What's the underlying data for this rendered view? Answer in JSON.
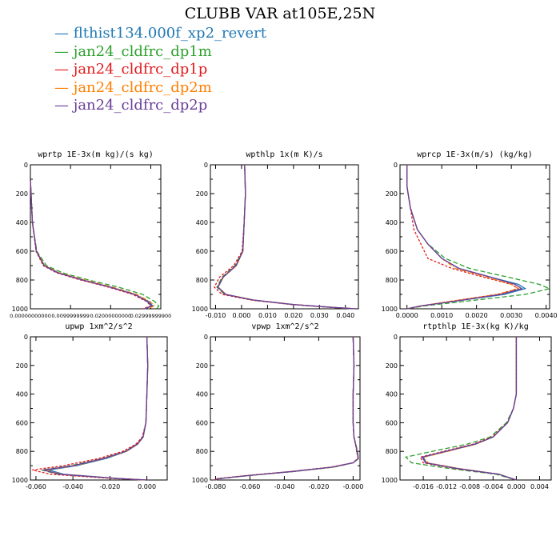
{
  "figure": {
    "title": "CLUBB VAR at105E,25N",
    "legend": [
      {
        "label": "flthist134.000f_xp2_revert",
        "color": "#1f78b4"
      },
      {
        "label": "jan24_cldfrc_dp1m",
        "color": "#2ca02c"
      },
      {
        "label": "jan24_cldfrc_dp1p",
        "color": "#e31a1c"
      },
      {
        "label": "jan24_cldfrc_dp2m",
        "color": "#ff7f00"
      },
      {
        "label": "jan24_cldfrc_dp2p",
        "color": "#6a3d9a"
      }
    ]
  },
  "chart_data": [
    {
      "type": "line",
      "title": "wprtp  1E-3x(m kg)/(s kg)",
      "xlim": [
        0,
        0.0325
      ],
      "ylim": [
        1000,
        0
      ],
      "xticks": [
        0.0,
        0.01,
        0.02,
        0.03
      ],
      "xtick_labels": [
        "0.00000000000",
        "0.0099999999",
        "0.02000000000",
        "0.02999999900"
      ],
      "yticks": [
        0,
        200,
        400,
        600,
        800,
        1000
      ],
      "ytick_labels": [
        "0",
        "200",
        "400",
        "600",
        "800",
        "1000"
      ],
      "pressure": [
        100,
        400,
        600,
        700,
        750,
        800,
        850,
        900,
        950,
        980,
        1000
      ],
      "series": [
        {
          "values": [
            0.0,
            0.0005,
            0.0015,
            0.0035,
            0.007,
            0.013,
            0.02,
            0.026,
            0.0295,
            0.0305,
            0.0285
          ]
        },
        {
          "values": [
            0.0,
            0.0005,
            0.0016,
            0.004,
            0.008,
            0.0145,
            0.022,
            0.028,
            0.031,
            0.032,
            0.0315
          ]
        },
        {
          "values": [
            0.0,
            0.0005,
            0.0014,
            0.0032,
            0.0065,
            0.0125,
            0.0195,
            0.0255,
            0.029,
            0.03,
            0.028
          ]
        },
        {
          "values": [
            0.0,
            0.0005,
            0.0015,
            0.0036,
            0.0072,
            0.0135,
            0.0205,
            0.0265,
            0.0298,
            0.031,
            0.029
          ]
        },
        {
          "values": [
            0.0,
            0.0005,
            0.0015,
            0.0034,
            0.0068,
            0.013,
            0.02,
            0.026,
            0.0292,
            0.0302,
            0.0285
          ]
        }
      ]
    },
    {
      "type": "line",
      "title": "wpthlp  1x(m K)/s",
      "xlim": [
        -0.012,
        0.045
      ],
      "ylim": [
        1000,
        0
      ],
      "xticks": [
        -0.01,
        0.0,
        0.01,
        0.02,
        0.03,
        0.04
      ],
      "xtick_labels": [
        "-0.010",
        "0.000",
        "0.010",
        "0.020",
        "0.030",
        "0.040"
      ],
      "yticks": [
        0,
        200,
        400,
        600,
        800,
        1000
      ],
      "ytick_labels": [
        "0",
        "200",
        "400",
        "600",
        "800",
        "1000"
      ],
      "pressure": [
        0,
        200,
        400,
        600,
        700,
        780,
        850,
        900,
        940,
        970,
        990,
        1000
      ],
      "series": [
        {
          "values": [
            0.0012,
            0.0015,
            0.001,
            0.0005,
            -0.002,
            -0.007,
            -0.009,
            -0.006,
            0.005,
            0.02,
            0.035,
            0.044
          ]
        },
        {
          "values": [
            0.0012,
            0.0015,
            0.001,
            0.0004,
            -0.0025,
            -0.0075,
            -0.0095,
            -0.0065,
            0.0045,
            0.0195,
            0.0345,
            0.044
          ]
        },
        {
          "values": [
            0.0012,
            0.0015,
            0.001,
            0.0002,
            -0.003,
            -0.0085,
            -0.0105,
            -0.0075,
            0.004,
            0.019,
            0.034,
            0.044
          ]
        },
        {
          "values": [
            0.0012,
            0.0015,
            0.001,
            0.0005,
            -0.002,
            -0.007,
            -0.009,
            -0.006,
            0.005,
            0.02,
            0.035,
            0.044
          ]
        },
        {
          "values": [
            0.0012,
            0.0015,
            0.001,
            0.0005,
            -0.0022,
            -0.0072,
            -0.0092,
            -0.0062,
            0.0048,
            0.0198,
            0.0348,
            0.044
          ]
        }
      ]
    },
    {
      "type": "line",
      "title": "wprcp  1E-3x(m/s) (kg/kg)",
      "xlim": [
        -0.0002,
        0.0041
      ],
      "ylim": [
        1000,
        0
      ],
      "xticks": [
        0.0,
        0.001,
        0.002,
        0.003,
        0.004
      ],
      "xtick_labels": [
        "0.0000",
        "0.0010",
        "0.0020",
        "0.0030",
        "0.0040"
      ],
      "yticks": [
        0,
        200,
        400,
        600,
        800,
        1000
      ],
      "ytick_labels": [
        "0",
        "200",
        "400",
        "600",
        "800",
        "1000"
      ],
      "pressure": [
        0,
        150,
        300,
        450,
        550,
        650,
        720,
        780,
        830,
        860,
        900,
        950,
        980,
        1000
      ],
      "series": [
        {
          "values": [
            0.0,
            0.0,
            0.0001,
            0.0003,
            0.0006,
            0.001,
            0.0015,
            0.0024,
            0.0032,
            0.0034,
            0.0028,
            0.0013,
            0.0004,
            0.0
          ]
        },
        {
          "values": [
            0.0,
            0.0,
            0.0001,
            0.0003,
            0.0006,
            0.0011,
            0.0018,
            0.0029,
            0.0038,
            0.0041,
            0.0034,
            0.0016,
            0.0005,
            0.0
          ]
        },
        {
          "values": [
            0.0,
            0.0,
            0.0001,
            0.0002,
            0.0004,
            0.0006,
            0.0013,
            0.0022,
            0.003,
            0.0032,
            0.0026,
            0.0012,
            0.0004,
            0.0
          ]
        },
        {
          "values": [
            0.0,
            0.0,
            0.0001,
            0.0003,
            0.0006,
            0.001,
            0.0014,
            0.0023,
            0.003,
            0.0032,
            0.0026,
            0.0012,
            0.0004,
            0.0
          ]
        },
        {
          "values": [
            0.0,
            0.0,
            0.0001,
            0.0003,
            0.0006,
            0.001,
            0.0015,
            0.0024,
            0.0031,
            0.0033,
            0.0027,
            0.0013,
            0.0004,
            0.0
          ]
        }
      ]
    },
    {
      "type": "line",
      "title": "upwp  1xm^2/s^2",
      "xlim": [
        -0.063,
        0.011
      ],
      "ylim": [
        1000,
        0
      ],
      "xticks": [
        -0.06,
        -0.04,
        -0.02,
        0.0
      ],
      "xtick_labels": [
        "-0.060",
        "-0.040",
        "-0.020",
        "0.000"
      ],
      "yticks": [
        0,
        200,
        400,
        600,
        800,
        1000
      ],
      "ytick_labels": [
        "0",
        "200",
        "400",
        "600",
        "800",
        "1000"
      ],
      "pressure": [
        0,
        200,
        400,
        600,
        700,
        750,
        800,
        850,
        900,
        930,
        960,
        990,
        1000
      ],
      "series": [
        {
          "values": [
            0.0,
            0.0005,
            0.0,
            -0.0005,
            -0.002,
            -0.005,
            -0.011,
            -0.022,
            -0.038,
            -0.053,
            -0.045,
            -0.015,
            0.0
          ]
        },
        {
          "values": [
            0.0,
            0.0005,
            0.0,
            -0.0005,
            -0.0022,
            -0.0055,
            -0.012,
            -0.024,
            -0.041,
            -0.057,
            -0.048,
            -0.016,
            0.0
          ]
        },
        {
          "values": [
            0.0,
            0.0005,
            0.0,
            -0.0005,
            -0.0025,
            -0.006,
            -0.013,
            -0.026,
            -0.045,
            -0.062,
            -0.052,
            -0.018,
            0.0
          ]
        },
        {
          "values": [
            0.0,
            0.0005,
            0.0,
            -0.0005,
            -0.002,
            -0.005,
            -0.011,
            -0.023,
            -0.039,
            -0.055,
            -0.046,
            -0.015,
            0.0
          ]
        },
        {
          "values": [
            0.0,
            0.0005,
            0.0,
            -0.0005,
            -0.0021,
            -0.0052,
            -0.0115,
            -0.0235,
            -0.04,
            -0.056,
            -0.047,
            -0.0155,
            0.0
          ]
        }
      ]
    },
    {
      "type": "line",
      "title": "vpwp  1xm^2/s^2",
      "xlim": [
        -0.083,
        0.004
      ],
      "ylim": [
        1000,
        0
      ],
      "xticks": [
        -0.08,
        -0.06,
        -0.04,
        -0.02,
        0.0
      ],
      "xtick_labels": [
        "-0.080",
        "-0.060",
        "-0.040",
        "-0.020",
        "-0.000"
      ],
      "yticks": [
        0,
        200,
        400,
        600,
        800,
        1000
      ],
      "ytick_labels": [
        "0",
        "200",
        "400",
        "600",
        "800",
        "1000"
      ],
      "pressure": [
        0,
        200,
        400,
        600,
        700,
        780,
        850,
        880,
        910,
        940,
        970,
        990,
        1000
      ],
      "series": [
        {
          "values": [
            0.0,
            0.0005,
            0.0,
            0.0,
            0.0005,
            0.002,
            0.003,
            0.0,
            -0.012,
            -0.035,
            -0.062,
            -0.078,
            -0.08
          ]
        },
        {
          "values": [
            0.0,
            0.0005,
            0.0,
            0.0,
            0.0005,
            0.0022,
            0.0032,
            0.0002,
            -0.011,
            -0.034,
            -0.061,
            -0.077,
            -0.08
          ]
        },
        {
          "values": [
            0.0,
            0.0005,
            0.0,
            0.0,
            0.0004,
            0.0018,
            0.0028,
            -0.0002,
            -0.013,
            -0.036,
            -0.063,
            -0.079,
            -0.081
          ]
        },
        {
          "values": [
            0.0,
            0.0005,
            0.0,
            0.0,
            0.0005,
            0.002,
            0.003,
            0.0,
            -0.012,
            -0.035,
            -0.062,
            -0.078,
            -0.08
          ]
        },
        {
          "values": [
            0.0,
            0.0005,
            0.0,
            0.0,
            0.0005,
            0.002,
            0.003,
            0.0,
            -0.012,
            -0.035,
            -0.062,
            -0.078,
            -0.08
          ]
        }
      ]
    },
    {
      "type": "line",
      "title": "rtpthlp  1E-3x(kg K)/kg",
      "xlim": [
        -0.02,
        0.006
      ],
      "ylim": [
        1000,
        0
      ],
      "xticks": [
        -0.016,
        -0.012,
        -0.008,
        -0.004,
        0.0,
        0.004
      ],
      "xtick_labels": [
        "-0.016",
        "-0.012",
        "-0.008",
        "-0.004",
        "0.000",
        "0.004"
      ],
      "yticks": [
        0,
        200,
        400,
        600,
        800,
        1000
      ],
      "ytick_labels": [
        "0",
        "200",
        "400",
        "600",
        "800",
        "1000"
      ],
      "pressure": [
        0,
        200,
        400,
        500,
        600,
        700,
        750,
        800,
        840,
        880,
        920,
        960,
        1000
      ],
      "series": [
        {
          "values": [
            0.0,
            0.0,
            0.0,
            -0.0005,
            -0.0015,
            -0.004,
            -0.007,
            -0.012,
            -0.016,
            -0.0155,
            -0.01,
            -0.003,
            0.0
          ]
        },
        {
          "values": [
            0.0,
            0.0,
            0.0,
            -0.0005,
            -0.0017,
            -0.0045,
            -0.0085,
            -0.0145,
            -0.019,
            -0.018,
            -0.0115,
            -0.0035,
            0.0
          ]
        },
        {
          "values": [
            0.0,
            0.0,
            0.0,
            -0.0005,
            -0.0015,
            -0.0042,
            -0.0075,
            -0.0125,
            -0.0165,
            -0.016,
            -0.0105,
            -0.003,
            0.0
          ]
        },
        {
          "values": [
            0.0,
            0.0,
            0.0,
            -0.0005,
            -0.0015,
            -0.004,
            -0.007,
            -0.0118,
            -0.0158,
            -0.0152,
            -0.0098,
            -0.003,
            0.0
          ]
        },
        {
          "values": [
            0.0,
            0.0,
            0.0,
            -0.0005,
            -0.0015,
            -0.004,
            -0.0072,
            -0.0122,
            -0.0162,
            -0.0156,
            -0.0102,
            -0.003,
            0.0
          ]
        }
      ]
    }
  ]
}
